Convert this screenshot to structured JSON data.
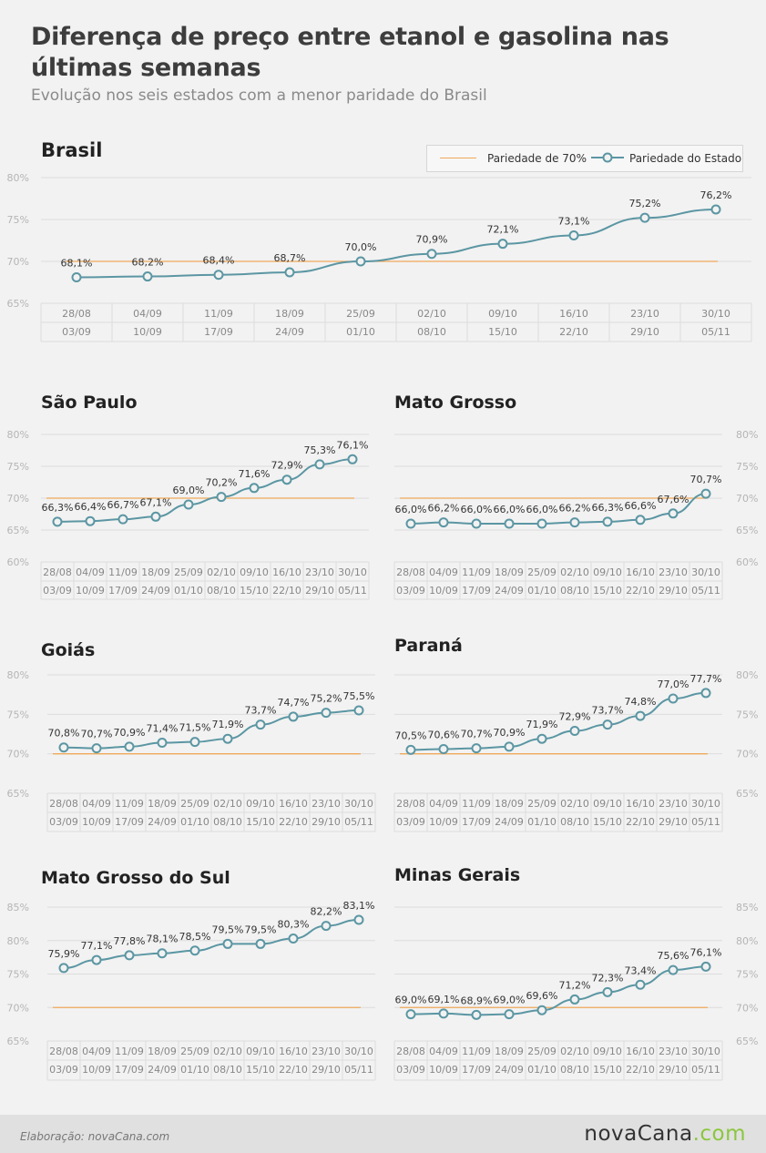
{
  "title": "Diferença de preço entre etanol e gasolina nas últimas semanas",
  "subtitle": "Evolução nos seis estados com a menor paridade do Brasil",
  "legend": {
    "parity_label": "Pariedade de 70%",
    "state_label": "Pariedade do Estado"
  },
  "colors": {
    "series": "#5b96a3",
    "reference": "#f0a95a",
    "grid": "#dcdcdc",
    "axis_text": "#b5b5b5"
  },
  "footer": {
    "credit": "Elaboração: novaCana.com",
    "logo_main": "novaCana",
    "logo_suffix": ".com"
  },
  "chart_data": [
    {
      "type": "line",
      "title": "Brasil",
      "y_ticks": [
        "80%",
        "75%",
        "70%",
        "65%"
      ],
      "ylim": [
        65,
        80
      ],
      "reference_value": 70,
      "x_start": [
        "28/08",
        "04/09",
        "11/09",
        "18/09",
        "25/09",
        "02/10",
        "09/10",
        "16/10",
        "23/10",
        "30/10"
      ],
      "x_end": [
        "03/09",
        "10/09",
        "17/09",
        "24/09",
        "01/10",
        "08/10",
        "15/10",
        "22/10",
        "29/10",
        "05/11"
      ],
      "values": [
        68.1,
        68.2,
        68.4,
        68.7,
        70.0,
        70.9,
        72.1,
        73.1,
        75.2,
        76.2
      ],
      "labels": [
        "68,1%",
        "68,2%",
        "68,4%",
        "68,7%",
        "70,0%",
        "70,9%",
        "72,1%",
        "73,1%",
        "75,2%",
        "76,2%"
      ],
      "grid": true,
      "legend_position": "top-right"
    },
    {
      "type": "line",
      "title": "São Paulo",
      "y_ticks": [
        "80%",
        "75%",
        "70%",
        "65%",
        "60%"
      ],
      "ylim": [
        60,
        80
      ],
      "reference_value": 70,
      "x_start": [
        "28/08",
        "04/09",
        "11/09",
        "18/09",
        "25/09",
        "02/10",
        "09/10",
        "16/10",
        "23/10",
        "30/10"
      ],
      "x_end": [
        "03/09",
        "10/09",
        "17/09",
        "24/09",
        "01/10",
        "08/10",
        "15/10",
        "22/10",
        "29/10",
        "05/11"
      ],
      "values": [
        66.3,
        66.4,
        66.7,
        67.1,
        69.0,
        70.2,
        71.6,
        72.9,
        75.3,
        76.1
      ],
      "labels": [
        "66,3%",
        "66,4%",
        "66,7%",
        "67,1%",
        "69,0%",
        "70,2%",
        "71,6%",
        "72,9%",
        "75,3%",
        "76,1%"
      ],
      "grid": true
    },
    {
      "type": "line",
      "title": "Mato Grosso",
      "y_ticks": [
        "80%",
        "75%",
        "70%",
        "65%",
        "60%"
      ],
      "ylim": [
        60,
        80
      ],
      "reference_value": 70,
      "x_start": [
        "28/08",
        "04/09",
        "11/09",
        "18/09",
        "25/09",
        "02/10",
        "09/10",
        "16/10",
        "23/10",
        "30/10"
      ],
      "x_end": [
        "03/09",
        "10/09",
        "17/09",
        "24/09",
        "01/10",
        "08/10",
        "15/10",
        "22/10",
        "29/10",
        "05/11"
      ],
      "values": [
        66.0,
        66.2,
        66.0,
        66.0,
        66.0,
        66.2,
        66.3,
        66.6,
        67.6,
        70.7
      ],
      "labels": [
        "66,0%",
        "66,2%",
        "66,0%",
        "66,0%",
        "66,0%",
        "66,2%",
        "66,3%",
        "66,6%",
        "67,6%",
        "70,7%"
      ],
      "grid": true
    },
    {
      "type": "line",
      "title": "Goiás",
      "y_ticks": [
        "80%",
        "75%",
        "70%",
        "65%"
      ],
      "ylim": [
        65,
        80
      ],
      "reference_value": 70,
      "x_start": [
        "28/08",
        "04/09",
        "11/09",
        "18/09",
        "25/09",
        "02/10",
        "09/10",
        "16/10",
        "23/10",
        "30/10"
      ],
      "x_end": [
        "03/09",
        "10/09",
        "17/09",
        "24/09",
        "01/10",
        "08/10",
        "15/10",
        "22/10",
        "29/10",
        "05/11"
      ],
      "values": [
        70.8,
        70.7,
        70.9,
        71.4,
        71.5,
        71.9,
        73.7,
        74.7,
        75.2,
        75.5
      ],
      "labels": [
        "70,8%",
        "70,7%",
        "70,9%",
        "71,4%",
        "71,5%",
        "71,9%",
        "73,7%",
        "74,7%",
        "75,2%",
        "75,5%"
      ],
      "grid": true
    },
    {
      "type": "line",
      "title": "Paraná",
      "y_ticks": [
        "80%",
        "75%",
        "70%",
        "65%"
      ],
      "ylim": [
        65,
        80
      ],
      "reference_value": 70,
      "x_start": [
        "28/08",
        "04/09",
        "11/09",
        "18/09",
        "25/09",
        "02/10",
        "09/10",
        "16/10",
        "23/10",
        "30/10"
      ],
      "x_end": [
        "03/09",
        "10/09",
        "17/09",
        "24/09",
        "01/10",
        "08/10",
        "15/10",
        "22/10",
        "29/10",
        "05/11"
      ],
      "values": [
        70.5,
        70.6,
        70.7,
        70.9,
        71.9,
        72.9,
        73.7,
        74.8,
        77.0,
        77.7
      ],
      "labels": [
        "70,5%",
        "70,6%",
        "70,7%",
        "70,9%",
        "71,9%",
        "72,9%",
        "73,7%",
        "74,8%",
        "77,0%",
        "77,7%"
      ],
      "grid": true
    },
    {
      "type": "line",
      "title": "Mato Grosso do Sul",
      "y_ticks": [
        "85%",
        "80%",
        "75%",
        "70%",
        "65%"
      ],
      "ylim": [
        65,
        85
      ],
      "reference_value": 70,
      "x_start": [
        "28/08",
        "04/09",
        "11/09",
        "18/09",
        "25/09",
        "02/10",
        "09/10",
        "16/10",
        "23/10",
        "30/10"
      ],
      "x_end": [
        "03/09",
        "10/09",
        "17/09",
        "24/09",
        "01/10",
        "08/10",
        "15/10",
        "22/10",
        "29/10",
        "05/11"
      ],
      "values": [
        75.9,
        77.1,
        77.8,
        78.1,
        78.5,
        79.5,
        79.5,
        80.3,
        82.2,
        83.1
      ],
      "labels": [
        "75,9%",
        "77,1%",
        "77,8%",
        "78,1%",
        "78,5%",
        "79,5%",
        "79,5%",
        "80,3%",
        "82,2%",
        "83,1%"
      ],
      "grid": true
    },
    {
      "type": "line",
      "title": "Minas Gerais",
      "y_ticks": [
        "85%",
        "80%",
        "75%",
        "70%",
        "65%"
      ],
      "ylim": [
        65,
        85
      ],
      "reference_value": 70,
      "x_start": [
        "28/08",
        "04/09",
        "11/09",
        "18/09",
        "25/09",
        "02/10",
        "09/10",
        "16/10",
        "23/10",
        "30/10"
      ],
      "x_end": [
        "03/09",
        "10/09",
        "17/09",
        "24/09",
        "01/10",
        "08/10",
        "15/10",
        "22/10",
        "29/10",
        "05/11"
      ],
      "values": [
        69.0,
        69.1,
        68.9,
        69.0,
        69.6,
        71.2,
        72.3,
        73.4,
        75.6,
        76.1
      ],
      "labels": [
        "69,0%",
        "69,1%",
        "68,9%",
        "69,0%",
        "69,6%",
        "71,2%",
        "72,3%",
        "73,4%",
        "75,6%",
        "76,1%"
      ],
      "grid": true
    }
  ]
}
